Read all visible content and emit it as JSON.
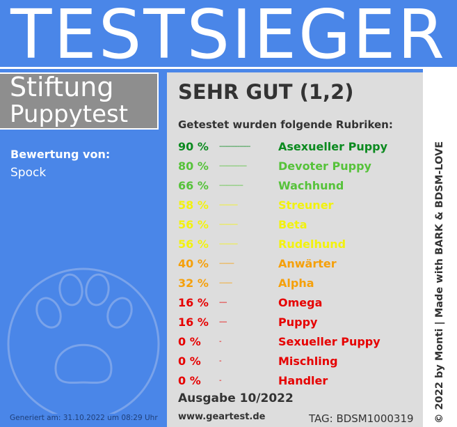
{
  "header": {
    "title": "TESTSIEGER"
  },
  "brand": {
    "line1": "Stiftung",
    "line2": "Puppytest"
  },
  "rating": {
    "label": "Bewertung von:",
    "value": "Spock"
  },
  "grade": "SEHR GUT (1,2)",
  "subtitle": "Getestet wurden folgende Rubriken:",
  "results": [
    {
      "percent": "90 %",
      "dashes": "-----------------",
      "category": "Asexueller Puppy",
      "color": "#0b8a1f"
    },
    {
      "percent": "80 %",
      "dashes": "---------------",
      "category": "Devoter Puppy",
      "color": "#56c23a"
    },
    {
      "percent": "66 %",
      "dashes": "-------------",
      "category": "Wachhund",
      "color": "#56c23a"
    },
    {
      "percent": "58 %",
      "dashes": "----------",
      "category": "Streuner",
      "color": "#f2f20e"
    },
    {
      "percent": "56 %",
      "dashes": "----------",
      "category": "Beta",
      "color": "#f2f20e"
    },
    {
      "percent": "56 %",
      "dashes": "----------",
      "category": "Rudelhund",
      "color": "#f2f20e"
    },
    {
      "percent": "40 %",
      "dashes": "--------",
      "category": "Anwärter",
      "color": "#f5a00a"
    },
    {
      "percent": "32 %",
      "dashes": "-------",
      "category": "Alpha",
      "color": "#f5a00a"
    },
    {
      "percent": "16 %",
      "dashes": "----",
      "category": "Omega",
      "color": "#e60000"
    },
    {
      "percent": "16 %",
      "dashes": "----",
      "category": "Puppy",
      "color": "#e60000"
    },
    {
      "percent": "0 %",
      "dashes": "-",
      "category": "Sexueller Puppy",
      "color": "#e60000"
    },
    {
      "percent": "0 %",
      "dashes": "-",
      "category": "Mischling",
      "color": "#e60000"
    },
    {
      "percent": "0 %",
      "dashes": "-",
      "category": "Handler",
      "color": "#e60000"
    }
  ],
  "footer": {
    "issue": "Ausgabe 10/2022",
    "website": "www.geartest.de",
    "tag": "TAG: BDSM1000319",
    "generated": "Generiert am: 31.10.2022 um 08:29 Uhr",
    "credit": "© 2022 by Monti | Made with BARK & BDSM-LOVE"
  },
  "icons": {
    "paw": "paw-print-icon"
  },
  "colors": {
    "accent": "#4a86e8",
    "panel": "#dddddd",
    "brand_box": "#8e8e8e"
  }
}
